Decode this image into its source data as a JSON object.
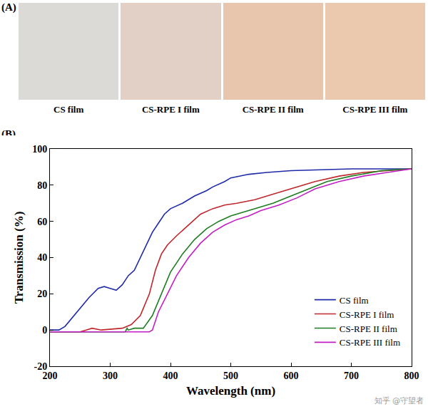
{
  "panel_a": {
    "label": "(A)",
    "swatches": [
      {
        "label": "CS film",
        "color": "#dcdad6"
      },
      {
        "label": "CS-RPE I film",
        "color": "#e2d0c6"
      },
      {
        "label": "CS-RPE II film",
        "color": "#e7c6ad"
      },
      {
        "label": "CS-RPE III film",
        "color": "#ebc9ae"
      }
    ]
  },
  "panel_b_label": "(B)",
  "watermark": "知乎 @守望者",
  "chart_data": {
    "type": "line",
    "x_label": "Wavelength (nm)",
    "y_label": "Transmission (%)",
    "xlim": [
      200,
      800
    ],
    "xticks": [
      200,
      300,
      400,
      500,
      600,
      700,
      800
    ],
    "ylim": [
      -20,
      100
    ],
    "yticks": [
      -20,
      0,
      20,
      40,
      60,
      80,
      100
    ],
    "grid": false,
    "legend": "lower right",
    "series": [
      {
        "name": "CS film",
        "color": "#1f2aa8",
        "x": [
          200,
          215,
          225,
          240,
          250,
          265,
          280,
          290,
          300,
          310,
          320,
          330,
          340,
          350,
          360,
          370,
          380,
          390,
          400,
          420,
          440,
          460,
          470,
          490,
          500,
          530,
          560,
          600,
          650,
          700,
          800
        ],
        "values": [
          0,
          0,
          2,
          8,
          12,
          18,
          23,
          24,
          23,
          22,
          25,
          30,
          33,
          40,
          47,
          54,
          59,
          64,
          67,
          70,
          74,
          77,
          79,
          82,
          84,
          86,
          87,
          88,
          88.5,
          89,
          89
        ]
      },
      {
        "name": "CS-RPE I film",
        "color": "#c0262b",
        "x": [
          200,
          250,
          260,
          270,
          285,
          300,
          320,
          335,
          350,
          365,
          375,
          385,
          395,
          410,
          430,
          450,
          470,
          490,
          510,
          540,
          570,
          600,
          640,
          680,
          720,
          760,
          800
        ],
        "values": [
          -1,
          -1,
          0,
          1,
          0,
          0.5,
          1,
          3,
          8,
          20,
          33,
          42,
          47,
          52,
          58,
          64,
          67,
          69,
          70,
          72,
          75,
          78,
          82,
          85,
          87,
          88,
          89
        ]
      },
      {
        "name": "CS-RPE II film",
        "color": "#1e7d22",
        "x": [
          200,
          325,
          328,
          330,
          340,
          355,
          370,
          385,
          400,
          420,
          440,
          460,
          480,
          500,
          520,
          540,
          570,
          600,
          630,
          660,
          700,
          750,
          800
        ],
        "values": [
          -1,
          -1,
          1,
          0,
          1,
          1,
          8,
          20,
          32,
          42,
          50,
          56,
          60,
          63,
          65,
          67,
          70,
          74,
          78,
          82,
          85,
          88,
          89
        ]
      },
      {
        "name": "CS-RPE III film",
        "color": "#c21fc2",
        "x": [
          200,
          365,
          370,
          380,
          395,
          410,
          430,
          450,
          470,
          490,
          510,
          530,
          550,
          580,
          610,
          640,
          680,
          720,
          760,
          800
        ],
        "values": [
          -1,
          -1,
          0,
          10,
          20,
          30,
          40,
          48,
          54,
          58,
          61,
          63,
          66,
          69,
          73,
          78,
          82,
          85,
          87,
          89
        ]
      }
    ]
  }
}
